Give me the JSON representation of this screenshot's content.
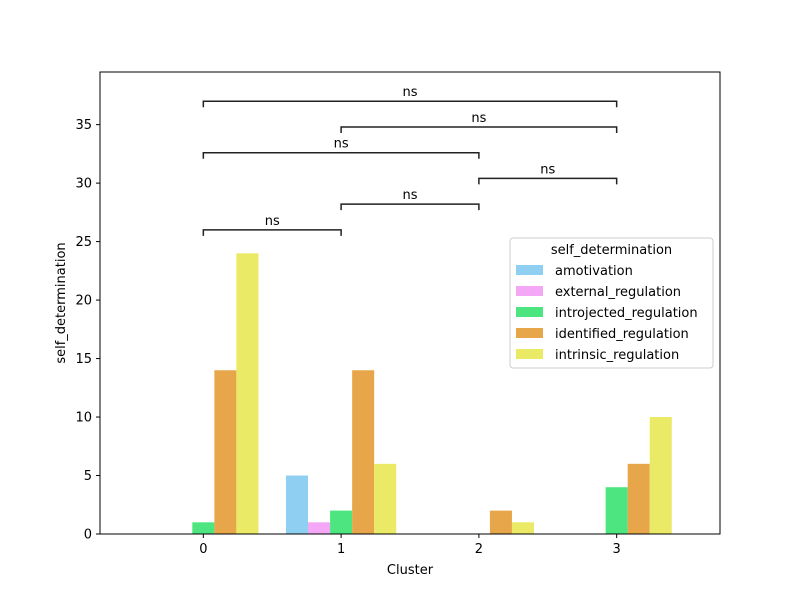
{
  "chart_data": {
    "type": "bar",
    "xlabel": "Cluster",
    "ylabel": "self_determination",
    "categories": [
      "0",
      "1",
      "2",
      "3"
    ],
    "ylim": [
      0,
      39.5
    ],
    "yticks": [
      0,
      5,
      10,
      15,
      20,
      25,
      30,
      35
    ],
    "grid": false,
    "legend": {
      "title": "self_determination",
      "placement": "center-right"
    },
    "series": [
      {
        "name": "amotivation",
        "color": "#8ecff2",
        "values": [
          0,
          5,
          0,
          0
        ]
      },
      {
        "name": "external_regulation",
        "color": "#f3a7f4",
        "values": [
          0,
          1,
          0,
          0
        ]
      },
      {
        "name": "introjected_regulation",
        "color": "#4ce57f",
        "values": [
          1,
          2,
          0,
          4
        ]
      },
      {
        "name": "identified_regulation",
        "color": "#e8a64b",
        "values": [
          14,
          14,
          2,
          6
        ]
      },
      {
        "name": "intrinsic_regulation",
        "color": "#ebea66",
        "values": [
          24,
          6,
          1,
          10
        ]
      }
    ],
    "annotations": [
      {
        "from": "0",
        "to": "1",
        "y": 26.0,
        "label": "ns"
      },
      {
        "from": "1",
        "to": "2",
        "y": 28.2,
        "label": "ns"
      },
      {
        "from": "2",
        "to": "3",
        "y": 30.4,
        "label": "ns"
      },
      {
        "from": "0",
        "to": "2",
        "y": 32.6,
        "label": "ns"
      },
      {
        "from": "1",
        "to": "3",
        "y": 34.8,
        "label": "ns"
      },
      {
        "from": "0",
        "to": "3",
        "y": 37.0,
        "label": "ns"
      }
    ]
  }
}
